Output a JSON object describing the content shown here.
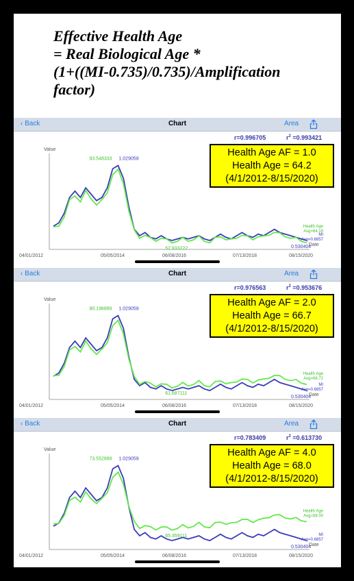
{
  "formula": {
    "line1": "Effective Health Age",
    "line2": "= Real Biological Age *",
    "line3": "(1+((MI-0.735)/0.735)/Amplification",
    "line4": "factor)"
  },
  "colors": {
    "health_age": "#62e84a",
    "mi": "#3a3ab8",
    "nav_link": "#2a7de1",
    "highlight_box": "#ffff00"
  },
  "panels": [
    {
      "nav": {
        "back": "Back",
        "title": "Chart",
        "area": "Area",
        "share_icon": "share-icon"
      },
      "stats": {
        "r": "r=0.996705",
        "r2_prefix": "r",
        "r2_sup": "2",
        "r2_value": " =0.993421"
      },
      "box": {
        "line1": "Health Age AF = 1.0",
        "line2": "Health Age = 64.2",
        "line3": "(4/1/2012-8/15/2020)"
      },
      "labels": {
        "value": "Value",
        "date": "Date",
        "x_start": "04/01/2012",
        "x_ticks": [
          "05/05/2014",
          "06/08/2016",
          "07/13/2018",
          "08/15/2020"
        ],
        "peak_green": "93.548333",
        "peak_mi": "1.029059",
        "min_green": "52.933222",
        "min_mi": "0.530404",
        "legend_green": [
          "Health Age",
          "Avg=64.19"
        ],
        "legend_mi": [
          "MI",
          "Avg=0.6857"
        ]
      },
      "chart_data": {
        "type": "line",
        "x": [
          "04/01/2012",
          "05/05/2014",
          "06/08/2016",
          "07/13/2018",
          "08/15/2020"
        ],
        "series": [
          {
            "name": "Health Age",
            "peak": 93.548333,
            "min": 52.933222,
            "avg": 64.19
          },
          {
            "name": "MI",
            "peak": 1.029059,
            "min": 0.530404,
            "avg": 0.6857
          }
        ]
      }
    },
    {
      "nav": {
        "back": "Back",
        "title": "Chart",
        "area": "Area",
        "share_icon": "share-icon"
      },
      "stats": {
        "r": "r=0.976563",
        "r2_prefix": "r",
        "r2_sup": "2",
        "r2_value": " =0.953676"
      },
      "box": {
        "line1": "Health Age AF = 2.0",
        "line2": "Health Age = 66.7",
        "line3": "(4/1/2012-8/15/2020)"
      },
      "labels": {
        "value": "Value",
        "date": "Date",
        "x_start": "04/01/2012",
        "x_ticks": [
          "05/05/2014",
          "06/08/2016",
          "07/13/2018",
          "08/15/2020"
        ],
        "peak_green": "80.196889",
        "peak_mi": "1.029059",
        "min_green": "61.687111",
        "min_mi": "0.530404",
        "legend_green": [
          "Health Age",
          "Avg=66.72"
        ],
        "legend_mi": [
          "MI",
          "Avg=0.6857"
        ]
      },
      "chart_data": {
        "type": "line",
        "x": [
          "04/01/2012",
          "05/05/2014",
          "06/08/2016",
          "07/13/2018",
          "08/15/2020"
        ],
        "series": [
          {
            "name": "Health Age",
            "peak": 80.196889,
            "min": 61.687111,
            "avg": 66.72
          },
          {
            "name": "MI",
            "peak": 1.029059,
            "min": 0.530404,
            "avg": 0.6857
          }
        ]
      }
    },
    {
      "nav": {
        "back": "Back",
        "title": "Chart",
        "area": "Area",
        "share_icon": "share-icon"
      },
      "stats": {
        "r": "r=0.783409",
        "r2_prefix": "r",
        "r2_sup": "2",
        "r2_value": " =0.613730"
      },
      "box": {
        "line1": "Health Age AF = 4.0",
        "line2": "Health Age = 68.0",
        "line3": "(4/1/2012-8/15/2020)"
      },
      "labels": {
        "value": "Value",
        "date": "Date",
        "x_start": "04/01/2012",
        "x_ticks": [
          "05/05/2014",
          "06/08/2016",
          "07/13/2018",
          "08/15/2020"
        ],
        "peak_green": "73.552889",
        "peak_mi": "1.029059",
        "min_green": "65.359111",
        "min_mi": "0.530404",
        "legend_green": [
          "Health Age",
          "Avg=68.00"
        ],
        "legend_mi": [
          "MI",
          "Avg=0.6857"
        ]
      },
      "chart_data": {
        "type": "line",
        "x": [
          "04/01/2012",
          "05/05/2014",
          "06/08/2016",
          "07/13/2018",
          "08/15/2020"
        ],
        "series": [
          {
            "name": "Health Age",
            "peak": 73.552889,
            "min": 65.359111,
            "avg": 68.0
          },
          {
            "name": "MI",
            "peak": 1.029059,
            "min": 0.530404,
            "avg": 0.6857
          }
        ]
      }
    }
  ]
}
